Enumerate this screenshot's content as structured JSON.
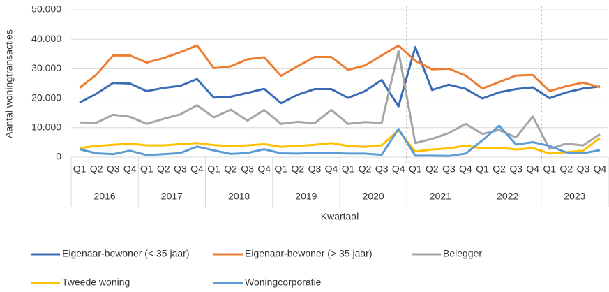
{
  "chart_data": {
    "type": "line",
    "y_label": "Aantal woningtransacties",
    "x_label": "Kwartaal",
    "categories": [
      "Q1",
      "Q2",
      "Q3",
      "Q4",
      "Q1",
      "Q2",
      "Q3",
      "Q4",
      "Q1",
      "Q2",
      "Q3",
      "Q4",
      "Q1",
      "Q2",
      "Q3",
      "Q4",
      "Q1",
      "Q2",
      "Q3",
      "Q4",
      "Q1",
      "Q2",
      "Q3",
      "Q4",
      "Q1",
      "Q2",
      "Q3",
      "Q4",
      "Q1",
      "Q2",
      "Q3",
      "Q4"
    ],
    "groups": [
      "2016",
      "2017",
      "2018",
      "2019",
      "2020",
      "2021",
      "2022",
      "2023"
    ],
    "dashed_year_boundaries": [
      "2021",
      "2023"
    ],
    "ylim": [
      0,
      50000
    ],
    "yticks": [
      0,
      {
        "value": 10000,
        "label": "10.000"
      },
      {
        "value": 20000,
        "label": "20.000"
      },
      {
        "value": 30000,
        "label": "30.000"
      },
      {
        "value": 40000,
        "label": "40.000"
      },
      {
        "value": 50000,
        "label": "50.000"
      }
    ],
    "grid": true,
    "legend": "bottom",
    "series": [
      {
        "name": "Eigenaar-bewoner (< 35 jaar)",
        "color": "#3a6bb5",
        "values": [
          18500,
          21500,
          25200,
          25000,
          22400,
          23500,
          24200,
          26500,
          20200,
          20500,
          21800,
          23200,
          18300,
          21200,
          23100,
          23100,
          20100,
          22400,
          26200,
          17200,
          37300,
          22800,
          24600,
          23200,
          19900,
          22000,
          23100,
          23700,
          20000,
          22000,
          23300,
          24000
        ]
      },
      {
        "name": "Eigenaar-bewoner (> 35 jaar)",
        "color": "#ed7d31",
        "values": [
          23500,
          28000,
          34500,
          34500,
          32100,
          33600,
          35600,
          37900,
          30200,
          30800,
          33200,
          33900,
          27600,
          30900,
          34000,
          34000,
          29600,
          31100,
          34500,
          37900,
          32700,
          29800,
          30000,
          27700,
          23300,
          25500,
          27700,
          27900,
          22400,
          24100,
          25300,
          23700
        ]
      },
      {
        "name": "Belegger",
        "color": "#a5a5a5",
        "values": [
          11800,
          11700,
          14400,
          13700,
          11300,
          13000,
          14500,
          17600,
          13500,
          16100,
          12400,
          16000,
          11300,
          12000,
          11500,
          16000,
          11300,
          11900,
          11600,
          36000,
          4800,
          6200,
          8200,
          11300,
          7900,
          9200,
          6700,
          13800,
          2800,
          4600,
          4000,
          7800
        ]
      },
      {
        "name": "Tweede woning",
        "color": "#ffc000",
        "values": [
          3100,
          3800,
          4200,
          4600,
          4000,
          4000,
          4400,
          4800,
          4100,
          3800,
          4000,
          4400,
          3500,
          3800,
          4200,
          4800,
          3800,
          3500,
          4000,
          9200,
          1900,
          2600,
          3000,
          3900,
          3000,
          3200,
          2600,
          3100,
          1200,
          1700,
          2200,
          6500
        ]
      },
      {
        "name": "Woningcorporatie",
        "color": "#5b9bd5",
        "values": [
          2700,
          1300,
          1000,
          2200,
          700,
          1000,
          1400,
          3600,
          2300,
          1100,
          1400,
          2700,
          1300,
          1200,
          1400,
          1400,
          1200,
          1200,
          800,
          9600,
          500,
          500,
          400,
          1200,
          5700,
          10700,
          4300,
          5100,
          3800,
          1600,
          1300,
          2400
        ]
      }
    ]
  }
}
